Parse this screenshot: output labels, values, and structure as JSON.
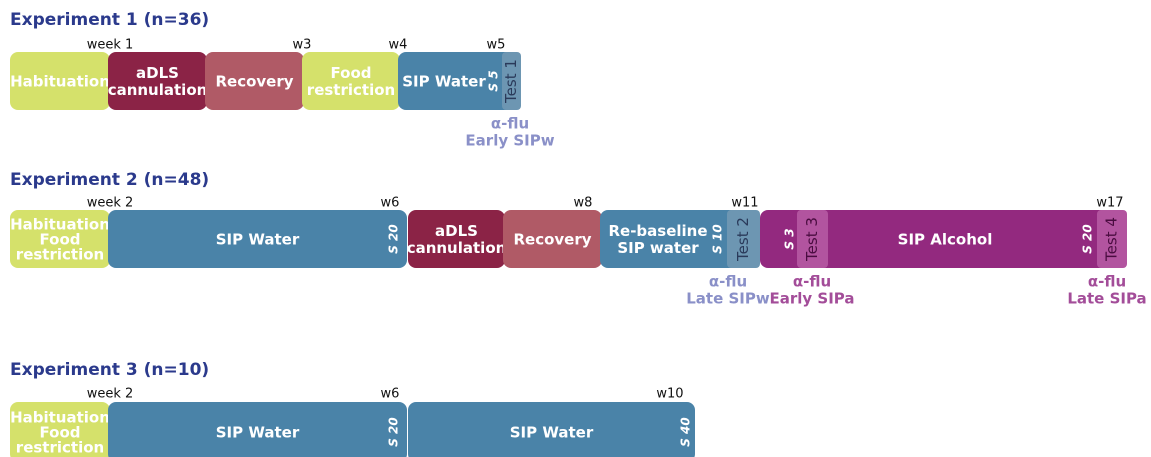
{
  "experiments": [
    {
      "title": "Experiment 1 (n=36)",
      "weeks": [
        "week 1",
        "w3",
        "w4",
        "w5"
      ],
      "segments": [
        {
          "lines": [
            "Habituation"
          ]
        },
        {
          "lines": [
            "aDLS",
            "cannulation"
          ]
        },
        {
          "lines": [
            "Recovery"
          ]
        },
        {
          "lines": [
            "Food",
            "restriction"
          ]
        },
        {
          "lines": [
            "SIP Water"
          ]
        }
      ],
      "sessions": [
        "S 5"
      ],
      "tests": [
        "Test 1"
      ],
      "annotations": [
        {
          "lines": [
            "α-flu",
            "Early SIPw"
          ]
        }
      ]
    },
    {
      "title": "Experiment 2 (n=48)",
      "weeks": [
        "week 2",
        "w6",
        "w8",
        "w11",
        "w17"
      ],
      "segments": [
        {
          "lines": [
            "Habituation",
            "Food",
            "restriction"
          ]
        },
        {
          "lines": [
            "SIP Water"
          ]
        },
        {
          "lines": [
            "aDLS",
            "cannulation"
          ]
        },
        {
          "lines": [
            "Recovery"
          ]
        },
        {
          "lines": [
            "Re-baseline",
            "SIP water"
          ]
        },
        {
          "lines": [
            "SIP Alcohol"
          ]
        }
      ],
      "sessions": [
        "S 20",
        "S 10",
        "S 3",
        "S 20"
      ],
      "tests": [
        "Test 2",
        "Test 3",
        "Test 4"
      ],
      "annotations": [
        {
          "lines": [
            "α-flu",
            "Late SIPw"
          ]
        },
        {
          "lines": [
            "α-flu",
            "Early SIPa"
          ]
        },
        {
          "lines": [
            "α-flu",
            "Late SIPa"
          ]
        }
      ]
    },
    {
      "title": "Experiment 3 (n=10)",
      "weeks": [
        "week 2",
        "w6",
        "w10"
      ],
      "segments": [
        {
          "lines": [
            "Habituation",
            "Food",
            "restriction"
          ]
        },
        {
          "lines": [
            "SIP Water"
          ]
        },
        {
          "lines": [
            "SIP Water"
          ]
        }
      ],
      "sessions": [
        "S 20",
        "S 40"
      ],
      "tests": [],
      "annotations": []
    }
  ]
}
